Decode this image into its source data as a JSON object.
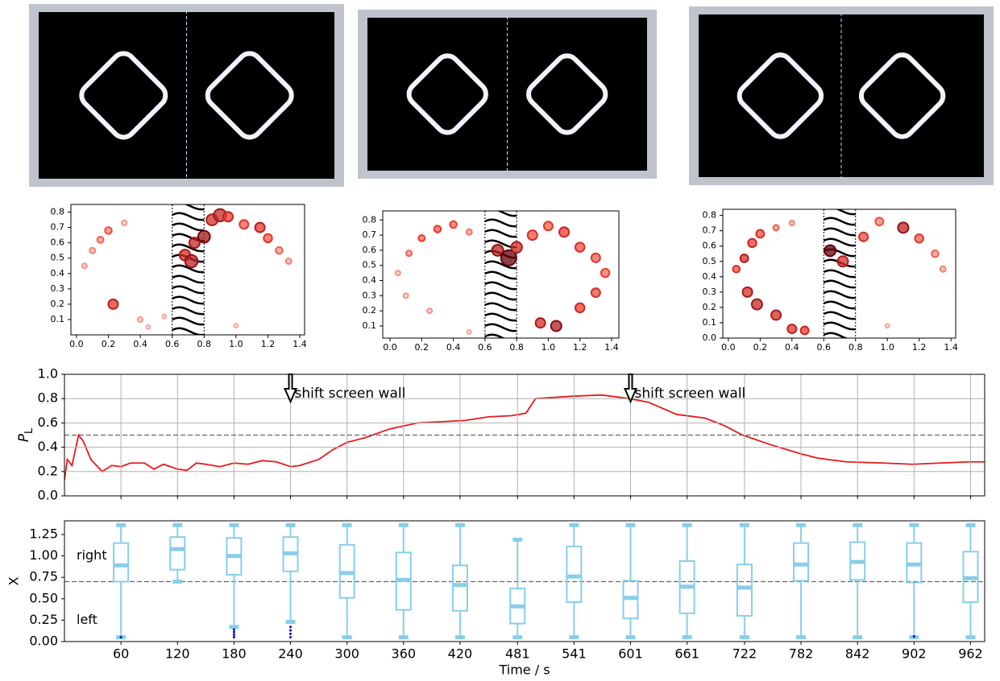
{
  "chart_data": [
    {
      "type": "scatter",
      "xlim": [
        -0.035,
        1.43
      ],
      "ylim": [
        0.0,
        0.85
      ],
      "xticks": [
        {
          "value": 0.0,
          "label": "0.0"
        },
        {
          "value": 0.2,
          "label": "0.2"
        },
        {
          "value": 0.4,
          "label": "0.4"
        },
        {
          "value": 0.6,
          "label": "0.6"
        },
        {
          "value": 0.8,
          "label": "0.8"
        },
        {
          "value": 1.0,
          "label": "1.0"
        },
        {
          "value": 1.2,
          "label": "1.2"
        },
        {
          "value": 1.4,
          "label": "1.4"
        }
      ],
      "yticks": [
        0.1,
        0.2,
        0.3,
        0.4,
        0.5,
        0.6,
        0.7,
        0.8
      ],
      "wall": [
        0.6,
        0.8
      ],
      "x": [
        0.05,
        0.1,
        0.15,
        0.2,
        0.23,
        0.3,
        0.4,
        0.45,
        0.55,
        0.68,
        0.72,
        0.74,
        0.8,
        0.85,
        0.9,
        0.95,
        1.05,
        1.15,
        1.2,
        1.27,
        1.33,
        1.0
      ],
      "values": [
        0.45,
        0.55,
        0.62,
        0.68,
        0.2,
        0.73,
        0.1,
        0.05,
        0.12,
        0.52,
        0.48,
        0.6,
        0.64,
        0.75,
        0.78,
        0.77,
        0.72,
        0.7,
        0.63,
        0.55,
        0.48,
        0.06
      ],
      "sizes": [
        30,
        40,
        50,
        60,
        120,
        30,
        30,
        20,
        20,
        150,
        200,
        140,
        180,
        160,
        200,
        120,
        100,
        120,
        90,
        60,
        40,
        20
      ],
      "shades": [
        0.1,
        0.15,
        0.25,
        0.3,
        0.55,
        0.1,
        0.1,
        0.05,
        0.05,
        0.6,
        0.7,
        0.65,
        0.8,
        0.6,
        0.65,
        0.5,
        0.4,
        0.55,
        0.4,
        0.25,
        0.15,
        0.05
      ]
    },
    {
      "type": "scatter",
      "xlim": [
        -0.046,
        1.446
      ],
      "ylim": [
        0.02,
        0.86
      ],
      "xticks": [
        {
          "value": 0.0,
          "label": "0.0"
        },
        {
          "value": 0.2,
          "label": "0.2"
        },
        {
          "value": 0.4,
          "label": "0.4"
        },
        {
          "value": 0.6,
          "label": "0.6"
        },
        {
          "value": 0.8,
          "label": "0.8"
        },
        {
          "value": 1.0,
          "label": "1.0"
        },
        {
          "value": 1.2,
          "label": "1.2"
        },
        {
          "value": 1.4,
          "label": "1.4"
        }
      ],
      "yticks": [
        0.1,
        0.2,
        0.3,
        0.4,
        0.5,
        0.6,
        0.7,
        0.8
      ],
      "wall": [
        0.6,
        0.8
      ],
      "x": [
        0.05,
        0.12,
        0.2,
        0.3,
        0.4,
        0.5,
        0.1,
        0.25,
        0.68,
        0.75,
        0.8,
        0.9,
        1.0,
        1.1,
        1.2,
        1.3,
        1.36,
        1.3,
        1.2,
        1.05,
        0.95,
        0.5
      ],
      "values": [
        0.45,
        0.58,
        0.68,
        0.74,
        0.77,
        0.72,
        0.3,
        0.2,
        0.6,
        0.55,
        0.62,
        0.7,
        0.76,
        0.72,
        0.62,
        0.55,
        0.45,
        0.32,
        0.22,
        0.1,
        0.12,
        0.06
      ],
      "sizes": [
        30,
        40,
        50,
        60,
        60,
        40,
        30,
        30,
        160,
        300,
        150,
        120,
        100,
        120,
        110,
        100,
        90,
        100,
        110,
        140,
        120,
        20
      ],
      "shades": [
        0.1,
        0.25,
        0.35,
        0.4,
        0.35,
        0.2,
        0.1,
        0.1,
        0.7,
        1.0,
        0.6,
        0.45,
        0.4,
        0.5,
        0.45,
        0.4,
        0.35,
        0.45,
        0.5,
        0.75,
        0.6,
        0.05
      ]
    },
    {
      "type": "scatter",
      "xlim": [
        -0.035,
        1.43
      ],
      "ylim": [
        0.0,
        0.84
      ],
      "xticks": [
        {
          "value": 0.0,
          "label": "0.0"
        },
        {
          "value": 0.2,
          "label": "0.2"
        },
        {
          "value": 0.4,
          "label": "0.4"
        },
        {
          "value": 0.6,
          "label": "0.6"
        },
        {
          "value": 0.8,
          "label": "0.8"
        },
        {
          "value": 1.0,
          "label": "1.0"
        },
        {
          "value": 1.2,
          "label": "1.2"
        },
        {
          "value": 1.4,
          "label": "1.4"
        }
      ],
      "yticks": [
        {
          "value": 0.0,
          "label": "0.0"
        },
        0.1,
        0.2,
        0.3,
        0.4,
        0.5,
        0.6,
        0.7,
        0.8
      ],
      "wall": [
        0.6,
        0.8
      ],
      "x": [
        0.05,
        0.1,
        0.15,
        0.2,
        0.3,
        0.12,
        0.18,
        0.3,
        0.4,
        0.48,
        0.64,
        0.72,
        0.85,
        0.95,
        1.1,
        1.2,
        1.3,
        1.35,
        1.0,
        0.4
      ],
      "values": [
        0.45,
        0.52,
        0.62,
        0.68,
        0.72,
        0.3,
        0.22,
        0.15,
        0.06,
        0.05,
        0.57,
        0.5,
        0.66,
        0.76,
        0.72,
        0.65,
        0.55,
        0.45,
        0.08,
        0.75
      ],
      "sizes": [
        60,
        80,
        90,
        80,
        40,
        120,
        140,
        120,
        100,
        80,
        160,
        140,
        100,
        80,
        140,
        90,
        60,
        40,
        20,
        30
      ],
      "shades": [
        0.45,
        0.6,
        0.5,
        0.45,
        0.25,
        0.6,
        0.65,
        0.6,
        0.55,
        0.5,
        1.0,
        0.6,
        0.45,
        0.3,
        0.7,
        0.4,
        0.25,
        0.15,
        0.05,
        0.15
      ]
    },
    {
      "type": "line",
      "xlim": [
        0,
        977
      ],
      "ylim": [
        0,
        1
      ],
      "yticks": [
        {
          "value": 0.0,
          "label": "0.0"
        },
        {
          "value": 0.2,
          "label": "0.2"
        },
        {
          "value": 0.4,
          "label": "0.4"
        },
        {
          "value": 0.6,
          "label": "0.6"
        },
        {
          "value": 0.8,
          "label": "0.8"
        },
        {
          "value": 1.0,
          "label": "1.0"
        }
      ],
      "ylabel": "P",
      "ylabel_sub": "L",
      "hline": 0.5,
      "grid": true,
      "color": "#e8191c",
      "annotations": [
        {
          "x": 240,
          "text": "shift screen wall"
        },
        {
          "x": 601,
          "text": "shift screen wall"
        }
      ],
      "x": [
        0,
        3,
        8,
        15,
        20,
        28,
        40,
        50,
        60,
        70,
        85,
        95,
        105,
        120,
        130,
        140,
        150,
        165,
        180,
        195,
        210,
        225,
        240,
        250,
        270,
        285,
        300,
        320,
        345,
        375,
        400,
        425,
        450,
        475,
        490,
        500,
        520,
        540,
        570,
        600,
        620,
        650,
        680,
        700,
        720,
        750,
        780,
        800,
        830,
        870,
        900,
        930,
        960,
        977
      ],
      "values": [
        0.13,
        0.3,
        0.25,
        0.5,
        0.45,
        0.3,
        0.2,
        0.25,
        0.24,
        0.27,
        0.27,
        0.22,
        0.26,
        0.22,
        0.21,
        0.27,
        0.26,
        0.24,
        0.27,
        0.26,
        0.29,
        0.28,
        0.24,
        0.25,
        0.3,
        0.38,
        0.44,
        0.48,
        0.55,
        0.6,
        0.61,
        0.62,
        0.65,
        0.66,
        0.68,
        0.8,
        0.81,
        0.82,
        0.83,
        0.8,
        0.77,
        0.67,
        0.64,
        0.58,
        0.5,
        0.42,
        0.35,
        0.31,
        0.28,
        0.27,
        0.26,
        0.27,
        0.28,
        0.28
      ]
    },
    {
      "type": "box",
      "xlim": [
        0,
        977
      ],
      "ylim": [
        0,
        1.41
      ],
      "xlabel": "Time / s",
      "ylabel": "X",
      "hline": 0.7,
      "color": "#87ceeb",
      "outlier_color": "#0000cc",
      "texts": [
        {
          "y": 1.0,
          "text": "right"
        },
        {
          "y": 0.25,
          "text": "left"
        }
      ],
      "yticks": [
        {
          "value": 0.0,
          "label": "0.00"
        },
        {
          "value": 0.25,
          "label": "0.25"
        },
        {
          "value": 0.5,
          "label": "0.50"
        },
        {
          "value": 0.75,
          "label": "0.75"
        },
        {
          "value": 1.0,
          "label": "1.00"
        },
        {
          "value": 1.25,
          "label": "1.25"
        }
      ],
      "xticks": [
        60,
        120,
        180,
        240,
        300,
        360,
        420,
        481,
        541,
        601,
        661,
        722,
        782,
        842,
        902,
        962
      ],
      "x": [
        60,
        120,
        180,
        240,
        300,
        360,
        420,
        481,
        541,
        601,
        661,
        722,
        782,
        842,
        902,
        962
      ],
      "low": [
        0.05,
        0.7,
        0.17,
        0.23,
        0.05,
        0.05,
        0.05,
        0.05,
        0.05,
        0.05,
        0.05,
        0.05,
        0.05,
        0.05,
        0.05,
        0.05
      ],
      "q1": [
        0.7,
        0.84,
        0.78,
        0.82,
        0.51,
        0.37,
        0.36,
        0.21,
        0.46,
        0.27,
        0.33,
        0.3,
        0.71,
        0.72,
        0.69,
        0.46
      ],
      "median": [
        0.89,
        1.08,
        1.0,
        1.03,
        0.8,
        0.72,
        0.66,
        0.41,
        0.76,
        0.51,
        0.64,
        0.63,
        0.9,
        0.93,
        0.9,
        0.74
      ],
      "q3": [
        1.15,
        1.22,
        1.21,
        1.22,
        1.13,
        1.04,
        0.89,
        0.62,
        1.11,
        0.71,
        0.94,
        0.9,
        1.15,
        1.16,
        1.15,
        1.05
      ],
      "high": [
        1.36,
        1.36,
        1.36,
        1.36,
        1.36,
        1.36,
        1.36,
        1.19,
        1.36,
        1.36,
        1.36,
        1.36,
        1.36,
        1.36,
        1.36,
        1.36
      ],
      "outliers": [
        [
          0.05
        ],
        [],
        [
          0.05,
          0.08,
          0.11,
          0.14
        ],
        [
          0.05,
          0.09,
          0.13,
          0.17
        ],
        [],
        [],
        [],
        [],
        [],
        [],
        [],
        [],
        [],
        [],
        [
          0.06
        ],
        []
      ]
    }
  ]
}
